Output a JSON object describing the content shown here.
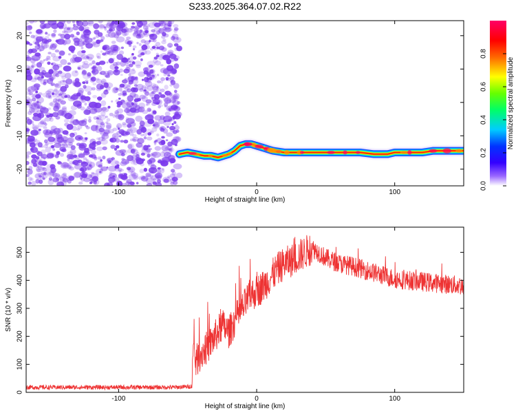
{
  "title": "S233.2025.364.07.02.R22",
  "chart_data": [
    {
      "type": "heatmap",
      "name": "spectrogram",
      "xlabel": "Height of straight line (km)",
      "ylabel": "Frequency (Hz)",
      "xlim": [
        -167,
        150
      ],
      "ylim": [
        -25,
        24.5
      ],
      "xticks": [
        -100,
        0,
        100
      ],
      "yticks": [
        20,
        10,
        0,
        -10,
        -20
      ],
      "noise_region_x": [
        -167,
        -56
      ],
      "signal_track": {
        "x": [
          -56,
          -50,
          -44,
          -38,
          -33,
          -28,
          -24,
          -20,
          -16,
          -12,
          -8,
          -4,
          0,
          4,
          8,
          12,
          20,
          40,
          60,
          75,
          85,
          95,
          100,
          110,
          120,
          128,
          135,
          150
        ],
        "freq": [
          -15.5,
          -15,
          -15.5,
          -16,
          -16,
          -16.5,
          -16,
          -15.5,
          -14.5,
          -13,
          -12.5,
          -12.5,
          -13,
          -13.5,
          -14,
          -14.5,
          -15,
          -15,
          -15,
          -15,
          -15.5,
          -15.5,
          -15,
          -15,
          -15,
          -14.5,
          -14.5,
          -14.5
        ]
      },
      "colorbar": {
        "label": "Normalized spectral amplitude",
        "ticks": [
          "0.0",
          "0.2",
          "0.4",
          "0.6",
          "0.8"
        ],
        "tick_values": [
          0.0,
          0.2,
          0.4,
          0.6,
          0.8
        ],
        "range": [
          0,
          1
        ]
      },
      "colormap": [
        "#ffffff",
        "#6600ff",
        "#0000ff",
        "#00ccff",
        "#00ff66",
        "#66ff00",
        "#ffff00",
        "#ff6600",
        "#ff0000",
        "#ff0066"
      ],
      "noise_color": "#7b3aec"
    },
    {
      "type": "line",
      "name": "snr",
      "xlabel": "Height of straight line (km)",
      "ylabel": "SNR (10 * v/v)",
      "xlim": [
        -167,
        150
      ],
      "ylim": [
        0,
        590
      ],
      "xticks": [
        -100,
        0,
        100
      ],
      "yticks": [
        0,
        100,
        200,
        300,
        400,
        500
      ],
      "line_color": "#ee3333",
      "series": [
        {
          "name": "SNR",
          "x": [
            -167,
            -120,
            -90,
            -60,
            -50,
            -47,
            -46,
            -44,
            -40,
            -35,
            -30,
            -25,
            -20,
            -15,
            -10,
            -5,
            0,
            5,
            10,
            15,
            20,
            25,
            30,
            35,
            40,
            45,
            50,
            55,
            60,
            70,
            80,
            90,
            100,
            110,
            120,
            130,
            140,
            150
          ],
          "values": [
            18,
            18,
            18,
            18,
            20,
            22,
            150,
            110,
            140,
            165,
            200,
            240,
            215,
            265,
            300,
            345,
            360,
            380,
            410,
            440,
            460,
            470,
            485,
            500,
            515,
            500,
            480,
            470,
            460,
            450,
            435,
            420,
            405,
            400,
            395,
            390,
            385,
            380
          ]
        }
      ]
    }
  ]
}
